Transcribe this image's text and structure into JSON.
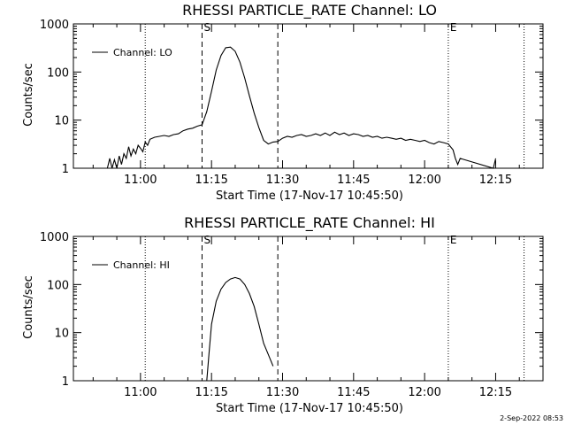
{
  "footer_timestamp": "2-Sep-2022 08:53",
  "chart_data": [
    {
      "type": "line",
      "title": "RHESSI PARTICLE_RATE Channel: LO",
      "xlabel": "Start Time (17-Nov-17 10:45:50)",
      "ylabel": "Counts/sec",
      "y_scale": "log",
      "ylim": [
        1,
        1000
      ],
      "y_ticks": [
        "1",
        "10",
        "100",
        "1000"
      ],
      "xlim": [
        "10:45:50",
        "12:25:00"
      ],
      "x_ticks": [
        "11:00",
        "11:15",
        "11:30",
        "11:45",
        "12:00",
        "12:15"
      ],
      "legend": {
        "label": "Channel: LO",
        "position": "top-left"
      },
      "markers": [
        {
          "label": "S",
          "time": "11:13:00",
          "style": "dashed"
        },
        {
          "label": "",
          "time": "11:29:00",
          "style": "dashed"
        },
        {
          "label": "",
          "time": "11:01:00",
          "style": "dotted"
        },
        {
          "label": "E",
          "time": "12:05:00",
          "style": "dotted"
        },
        {
          "label": "",
          "time": "12:21:00",
          "style": "dotted"
        }
      ],
      "series": [
        {
          "name": "Channel: LO",
          "x": [
            "10:53:00",
            "10:53:30",
            "10:54:00",
            "10:54:30",
            "10:55:00",
            "10:55:30",
            "10:56:00",
            "10:56:30",
            "10:57:00",
            "10:57:30",
            "10:58:00",
            "10:58:30",
            "10:59:00",
            "10:59:30",
            "11:00:00",
            "11:00:30",
            "11:01:00",
            "11:01:30",
            "11:02:00",
            "11:03:00",
            "11:04:00",
            "11:05:00",
            "11:06:00",
            "11:07:00",
            "11:08:00",
            "11:09:00",
            "11:10:00",
            "11:11:00",
            "11:12:00",
            "11:13:00",
            "11:14:00",
            "11:15:00",
            "11:16:00",
            "11:17:00",
            "11:18:00",
            "11:19:00",
            "11:20:00",
            "11:21:00",
            "11:22:00",
            "11:23:00",
            "11:24:00",
            "11:25:00",
            "11:26:00",
            "11:27:00",
            "11:28:00",
            "11:29:00",
            "11:30:00",
            "11:31:00",
            "11:32:00",
            "11:33:00",
            "11:34:00",
            "11:35:00",
            "11:36:00",
            "11:37:00",
            "11:38:00",
            "11:39:00",
            "11:40:00",
            "11:41:00",
            "11:42:00",
            "11:43:00",
            "11:44:00",
            "11:45:00",
            "11:46:00",
            "11:47:00",
            "11:48:00",
            "11:49:00",
            "11:50:00",
            "11:51:00",
            "11:52:00",
            "11:53:00",
            "11:54:00",
            "11:55:00",
            "11:56:00",
            "11:57:00",
            "11:58:00",
            "11:59:00",
            "12:00:00",
            "12:01:00",
            "12:02:00",
            "12:03:00",
            "12:04:00",
            "12:05:00",
            "12:06:00",
            "12:06:30",
            "12:07:00",
            "12:07:30",
            "12:14:30",
            "12:15:00"
          ],
          "values": [
            1.0,
            1.6,
            1.0,
            1.5,
            1.0,
            1.8,
            1.2,
            2.0,
            1.6,
            2.8,
            1.8,
            2.5,
            2.0,
            3.0,
            2.6,
            2.2,
            3.5,
            3.0,
            4.0,
            4.4,
            4.6,
            4.8,
            4.6,
            5.0,
            5.2,
            6.0,
            6.5,
            6.8,
            7.5,
            8.0,
            15,
            40,
            110,
            220,
            320,
            330,
            270,
            160,
            75,
            32,
            14,
            7.0,
            3.8,
            3.2,
            3.5,
            3.6,
            4.2,
            4.6,
            4.4,
            4.8,
            5.0,
            4.6,
            4.8,
            5.2,
            4.8,
            5.4,
            4.8,
            5.6,
            5.0,
            5.4,
            4.8,
            5.2,
            5.0,
            4.6,
            4.8,
            4.4,
            4.6,
            4.2,
            4.4,
            4.2,
            4.0,
            4.2,
            3.8,
            4.0,
            3.8,
            3.6,
            3.8,
            3.4,
            3.2,
            3.6,
            3.4,
            3.2,
            2.4,
            1.6,
            1.2,
            1.6,
            1.0,
            1.6
          ]
        }
      ]
    },
    {
      "type": "line",
      "title": "RHESSI PARTICLE_RATE Channel: HI",
      "xlabel": "Start Time (17-Nov-17 10:45:50)",
      "ylabel": "Counts/sec",
      "y_scale": "log",
      "ylim": [
        1,
        1000
      ],
      "y_ticks": [
        "1",
        "10",
        "100",
        "1000"
      ],
      "xlim": [
        "10:45:50",
        "12:25:00"
      ],
      "x_ticks": [
        "11:00",
        "11:15",
        "11:30",
        "11:45",
        "12:00",
        "12:15"
      ],
      "legend": {
        "label": "Channel: HI",
        "position": "top-left"
      },
      "markers": [
        {
          "label": "S",
          "time": "11:13:00",
          "style": "dashed"
        },
        {
          "label": "",
          "time": "11:29:00",
          "style": "dashed"
        },
        {
          "label": "",
          "time": "11:01:00",
          "style": "dotted"
        },
        {
          "label": "E",
          "time": "12:05:00",
          "style": "dotted"
        },
        {
          "label": "",
          "time": "12:21:00",
          "style": "dotted"
        }
      ],
      "series": [
        {
          "name": "Channel: HI",
          "x": [
            "11:14:00",
            "11:14:30",
            "11:15:00",
            "11:16:00",
            "11:17:00",
            "11:18:00",
            "11:19:00",
            "11:20:00",
            "11:21:00",
            "11:22:00",
            "11:23:00",
            "11:24:00",
            "11:25:00",
            "11:26:00",
            "11:27:00",
            "11:28:00"
          ],
          "values": [
            1.0,
            4,
            15,
            45,
            80,
            110,
            130,
            140,
            130,
            100,
            65,
            35,
            15,
            6.0,
            3.5,
            2.0
          ]
        }
      ]
    }
  ]
}
